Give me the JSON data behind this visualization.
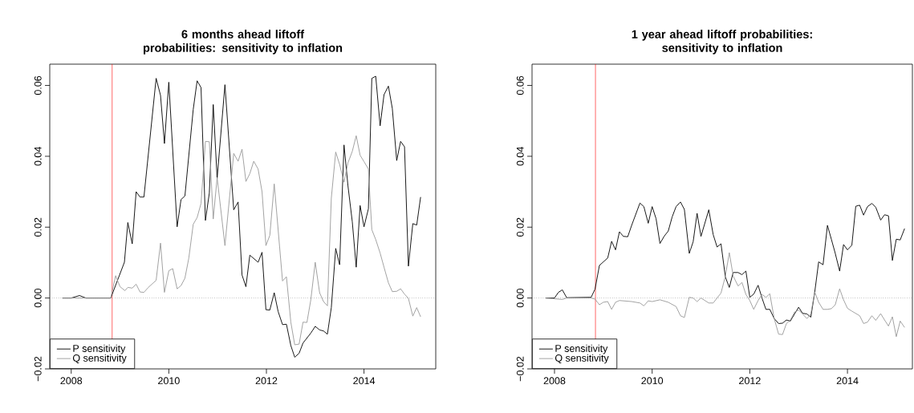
{
  "chart_data": [
    {
      "type": "line",
      "title": "6 months ahead liftoff probabilities: sensitivity to inflation",
      "xlim": [
        2007.56,
        2015.47
      ],
      "ylim": [
        -0.02,
        0.066
      ],
      "xticks": [
        2008,
        2010,
        2012,
        2014
      ],
      "yticks": [
        {
          "value": -0.02,
          "label": "−0.02"
        },
        {
          "value": 0,
          "label": "0.00"
        },
        {
          "value": 0.02,
          "label": "0.02"
        },
        {
          "value": 0.04,
          "label": "0.04"
        },
        {
          "value": 0.06,
          "label": "0.06"
        }
      ],
      "legend": "bottom left",
      "line_style": "solid",
      "ref_lines": [
        {
          "axis": "x",
          "value": 2008.84,
          "color": "#ff0000",
          "line_style": "solid"
        },
        {
          "axis": "y",
          "value": 0,
          "color": "#808080",
          "line_style": "dotted"
        }
      ],
      "series": [
        {
          "name": "P sensitivity",
          "color": "#000000",
          "x": [
            2007.82,
            2008.0,
            2008.17,
            2008.3,
            2008.81,
            2009.09,
            2009.16,
            2009.25,
            2009.33,
            2009.41,
            2009.49,
            2009.74,
            2009.83,
            2009.91,
            2010.0,
            2010.17,
            2010.25,
            2010.33,
            2010.5,
            2010.58,
            2010.66,
            2010.75,
            2010.83,
            2010.91,
            2010.99,
            2011.15,
            2011.33,
            2011.42,
            2011.5,
            2011.58,
            2011.66,
            2011.83,
            2011.91,
            2011.99,
            2012.07,
            2012.16,
            2012.24,
            2012.33,
            2012.41,
            2012.5,
            2012.58,
            2012.67,
            2012.75,
            2012.91,
            2013.0,
            2013.09,
            2013.17,
            2013.25,
            2013.33,
            2013.42,
            2013.5,
            2013.59,
            2013.67,
            2013.76,
            2013.84,
            2013.92,
            2014.0,
            2014.09,
            2014.16,
            2014.24,
            2014.33,
            2014.41,
            2014.5,
            2014.58,
            2014.67,
            2014.75,
            2014.83,
            2014.91,
            2015.0,
            2015.08,
            2015.16
          ],
          "values": [
            0,
            0,
            0.0007,
            0,
            0,
            0.0101,
            0.0213,
            0.0153,
            0.03,
            0.0285,
            0.0285,
            0.062,
            0.0572,
            0.0436,
            0.0609,
            0.0201,
            0.0278,
            0.0288,
            0.0532,
            0.0613,
            0.0594,
            0.0219,
            0.0296,
            0.0546,
            0.0337,
            0.0602,
            0.0249,
            0.0271,
            0.0065,
            0.0032,
            0.0121,
            0.0101,
            0.0129,
            -0.0033,
            -0.0034,
            0.0015,
            -0.0038,
            -0.0075,
            -0.0074,
            -0.0134,
            -0.0167,
            -0.0156,
            -0.0127,
            -0.0099,
            -0.008,
            -0.009,
            -0.0093,
            -0.0102,
            -0.0027,
            0.014,
            0.0094,
            0.0432,
            0.0318,
            0.0215,
            0.0087,
            0.0261,
            0.0201,
            0.0252,
            0.062,
            0.0626,
            0.0486,
            0.0574,
            0.0598,
            0.0535,
            0.0388,
            0.0442,
            0.0427,
            0.009,
            0.021,
            0.0206,
            0.0285
          ]
        },
        {
          "name": "Q sensitivity",
          "color": "#999999",
          "x": [
            2007.82,
            2008.81,
            2008.91,
            2009.0,
            2009.1,
            2009.16,
            2009.25,
            2009.33,
            2009.41,
            2009.49,
            2009.58,
            2009.74,
            2009.83,
            2009.91,
            2010.0,
            2010.08,
            2010.17,
            2010.25,
            2010.33,
            2010.41,
            2010.5,
            2010.58,
            2010.66,
            2010.75,
            2010.83,
            2010.91,
            2010.99,
            2011.15,
            2011.33,
            2011.42,
            2011.5,
            2011.58,
            2011.66,
            2011.74,
            2011.83,
            2011.91,
            2011.99,
            2012.07,
            2012.16,
            2012.33,
            2012.41,
            2012.5,
            2012.58,
            2012.67,
            2012.75,
            2012.83,
            2012.91,
            2013.0,
            2013.09,
            2013.17,
            2013.25,
            2013.33,
            2013.42,
            2013.5,
            2013.59,
            2013.67,
            2013.76,
            2013.84,
            2013.92,
            2014.0,
            2014.09,
            2014.16,
            2014.24,
            2014.33,
            2014.41,
            2014.5,
            2014.58,
            2014.67,
            2014.75,
            2014.83,
            2014.91,
            2015.0,
            2015.08,
            2015.16
          ],
          "values": [
            0,
            0,
            0.0063,
            0.0032,
            0.0021,
            0.003,
            0.0028,
            0.0039,
            0.0017,
            0.0016,
            0.003,
            0.005,
            0.0155,
            0.0016,
            0.0077,
            0.0083,
            0.0026,
            0.0035,
            0.0056,
            0.0113,
            0.0208,
            0.0227,
            0.0267,
            0.0442,
            0.0441,
            0.0223,
            0.034,
            0.0148,
            0.0408,
            0.0386,
            0.042,
            0.0329,
            0.0351,
            0.0386,
            0.0364,
            0.03,
            0.0148,
            0.0177,
            0.0322,
            0.0048,
            0.006,
            -0.0068,
            -0.0132,
            -0.013,
            -0.0068,
            -0.0069,
            -0.0005,
            0.0101,
            0.0015,
            -0.001,
            -0.0022,
            0.0282,
            0.0412,
            0.0377,
            0.0327,
            0.0381,
            0.0414,
            0.0458,
            0.0403,
            0.0385,
            0.0364,
            0.0193,
            0.0165,
            0.0127,
            0.0087,
            0.0043,
            0.0018,
            0.0019,
            0.0026,
            0.0011,
            -0.0001,
            -0.0051,
            -0.0027,
            -0.0053
          ]
        }
      ]
    },
    {
      "type": "line",
      "title": "1 year ahead liftoff probabilities: sensitivity to inflation",
      "xlim": [
        2007.54,
        2015.33
      ],
      "ylim": [
        -0.02,
        0.066
      ],
      "xticks": [
        2008,
        2010,
        2012,
        2014
      ],
      "yticks": [
        {
          "value": -0.02,
          "label": "−0.02"
        },
        {
          "value": 0,
          "label": "0.00"
        },
        {
          "value": 0.02,
          "label": "0.02"
        },
        {
          "value": 0.04,
          "label": "0.04"
        },
        {
          "value": 0.06,
          "label": "0.06"
        }
      ],
      "legend": "bottom left",
      "line_style": "solid",
      "ref_lines": [
        {
          "axis": "x",
          "value": 2008.84,
          "color": "#ff0000",
          "line_style": "solid"
        },
        {
          "axis": "y",
          "value": 0,
          "color": "#808080",
          "line_style": "dotted"
        }
      ],
      "series": [
        {
          "name": "P sensitivity",
          "color": "#000000",
          "x": [
            2007.82,
            2008.0,
            2008.08,
            2008.16,
            2008.25,
            2008.75,
            2008.83,
            2008.92,
            2009.09,
            2009.17,
            2009.25,
            2009.33,
            2009.41,
            2009.5,
            2009.58,
            2009.75,
            2009.83,
            2009.92,
            2010.0,
            2010.08,
            2010.16,
            2010.25,
            2010.33,
            2010.41,
            2010.49,
            2010.58,
            2010.66,
            2010.76,
            2010.84,
            2010.92,
            2011.0,
            2011.16,
            2011.25,
            2011.33,
            2011.41,
            2011.5,
            2011.58,
            2011.66,
            2011.76,
            2011.84,
            2011.92,
            2012.0,
            2012.08,
            2012.17,
            2012.25,
            2012.33,
            2012.41,
            2012.5,
            2012.59,
            2012.67,
            2012.75,
            2012.83,
            2012.92,
            2013.0,
            2013.08,
            2013.17,
            2013.25,
            2013.33,
            2013.41,
            2013.5,
            2013.59,
            2013.67,
            2013.75,
            2013.84,
            2013.92,
            2014.0,
            2014.09,
            2014.17,
            2014.25,
            2014.33,
            2014.41,
            2014.5,
            2014.58,
            2014.68,
            2014.76,
            2014.84,
            2014.92,
            2015.0,
            2015.08,
            2015.17
          ],
          "values": [
            0,
            0,
            0.0016,
            0.0023,
            0.0001,
            0.0002,
            0.0025,
            0.0092,
            0.0113,
            0.016,
            0.0136,
            0.0187,
            0.0174,
            0.0173,
            0.0205,
            0.0268,
            0.0258,
            0.0211,
            0.0258,
            0.0224,
            0.0154,
            0.0175,
            0.0189,
            0.0229,
            0.0258,
            0.0271,
            0.025,
            0.0126,
            0.0159,
            0.0239,
            0.0174,
            0.0249,
            0.0179,
            0.0144,
            0.0153,
            0.0059,
            0.003,
            0.0072,
            0.0072,
            0.0066,
            0.0076,
            0.0002,
            0.0011,
            0.0036,
            0,
            -0.0032,
            -0.0032,
            -0.0058,
            -0.0072,
            -0.0071,
            -0.0062,
            -0.0065,
            -0.0044,
            -0.0026,
            -0.0043,
            -0.0045,
            -0.0054,
            0.0017,
            0.0102,
            0.0094,
            0.0205,
            0.0166,
            0.0126,
            0.0076,
            0.0151,
            0.0136,
            0.0149,
            0.0259,
            0.0262,
            0.0234,
            0.0258,
            0.0267,
            0.0256,
            0.022,
            0.0235,
            0.0232,
            0.0106,
            0.0166,
            0.0164,
            0.0196
          ]
        },
        {
          "name": "Q sensitivity",
          "color": "#999999",
          "x": [
            2007.82,
            2008.16,
            2008.25,
            2008.75,
            2008.83,
            2008.92,
            2009.0,
            2009.09,
            2009.17,
            2009.25,
            2009.33,
            2009.58,
            2009.75,
            2009.83,
            2009.92,
            2010.0,
            2010.16,
            2010.33,
            2010.49,
            2010.58,
            2010.66,
            2010.76,
            2010.84,
            2010.92,
            2011.0,
            2011.16,
            2011.25,
            2011.41,
            2011.5,
            2011.58,
            2011.66,
            2011.76,
            2011.84,
            2011.92,
            2012.0,
            2012.08,
            2012.17,
            2012.25,
            2012.33,
            2012.41,
            2012.5,
            2012.59,
            2012.67,
            2012.75,
            2012.83,
            2012.92,
            2013.0,
            2013.08,
            2013.17,
            2013.25,
            2013.33,
            2013.41,
            2013.5,
            2013.59,
            2013.67,
            2013.75,
            2013.84,
            2013.92,
            2014.0,
            2014.09,
            2014.25,
            2014.33,
            2014.41,
            2014.5,
            2014.58,
            2014.68,
            2014.76,
            2014.84,
            2014.92,
            2015.0,
            2015.08,
            2015.17
          ],
          "values": [
            0,
            -0.0004,
            0,
            0,
            -0.0003,
            -0.0019,
            -0.0012,
            -0.001,
            -0.0032,
            -0.0012,
            -0.0007,
            -0.001,
            -0.0014,
            -0.0022,
            -0.0008,
            -0.001,
            -0.0005,
            -0.0012,
            -0.0024,
            -0.005,
            -0.0055,
            0.0002,
            0,
            -0.001,
            0,
            -0.0014,
            -0.0014,
            0.0014,
            0.0062,
            0.0128,
            0.0062,
            0.0034,
            0.0044,
            0.001,
            -0.0007,
            -0.0032,
            -0.0007,
            0.001,
            0.0002,
            0.0012,
            -0.0058,
            -0.0102,
            -0.0103,
            -0.0072,
            -0.0062,
            -0.0039,
            -0.0034,
            -0.0045,
            -0.0058,
            -0.0045,
            0.0017,
            -0.0012,
            -0.0032,
            -0.0032,
            -0.003,
            -0.0019,
            0.0026,
            -0.0005,
            -0.0029,
            -0.0037,
            -0.005,
            -0.0072,
            -0.0068,
            -0.005,
            -0.0063,
            -0.0044,
            -0.0062,
            -0.0079,
            -0.0053,
            -0.0109,
            -0.0065,
            -0.0083
          ]
        }
      ]
    }
  ]
}
